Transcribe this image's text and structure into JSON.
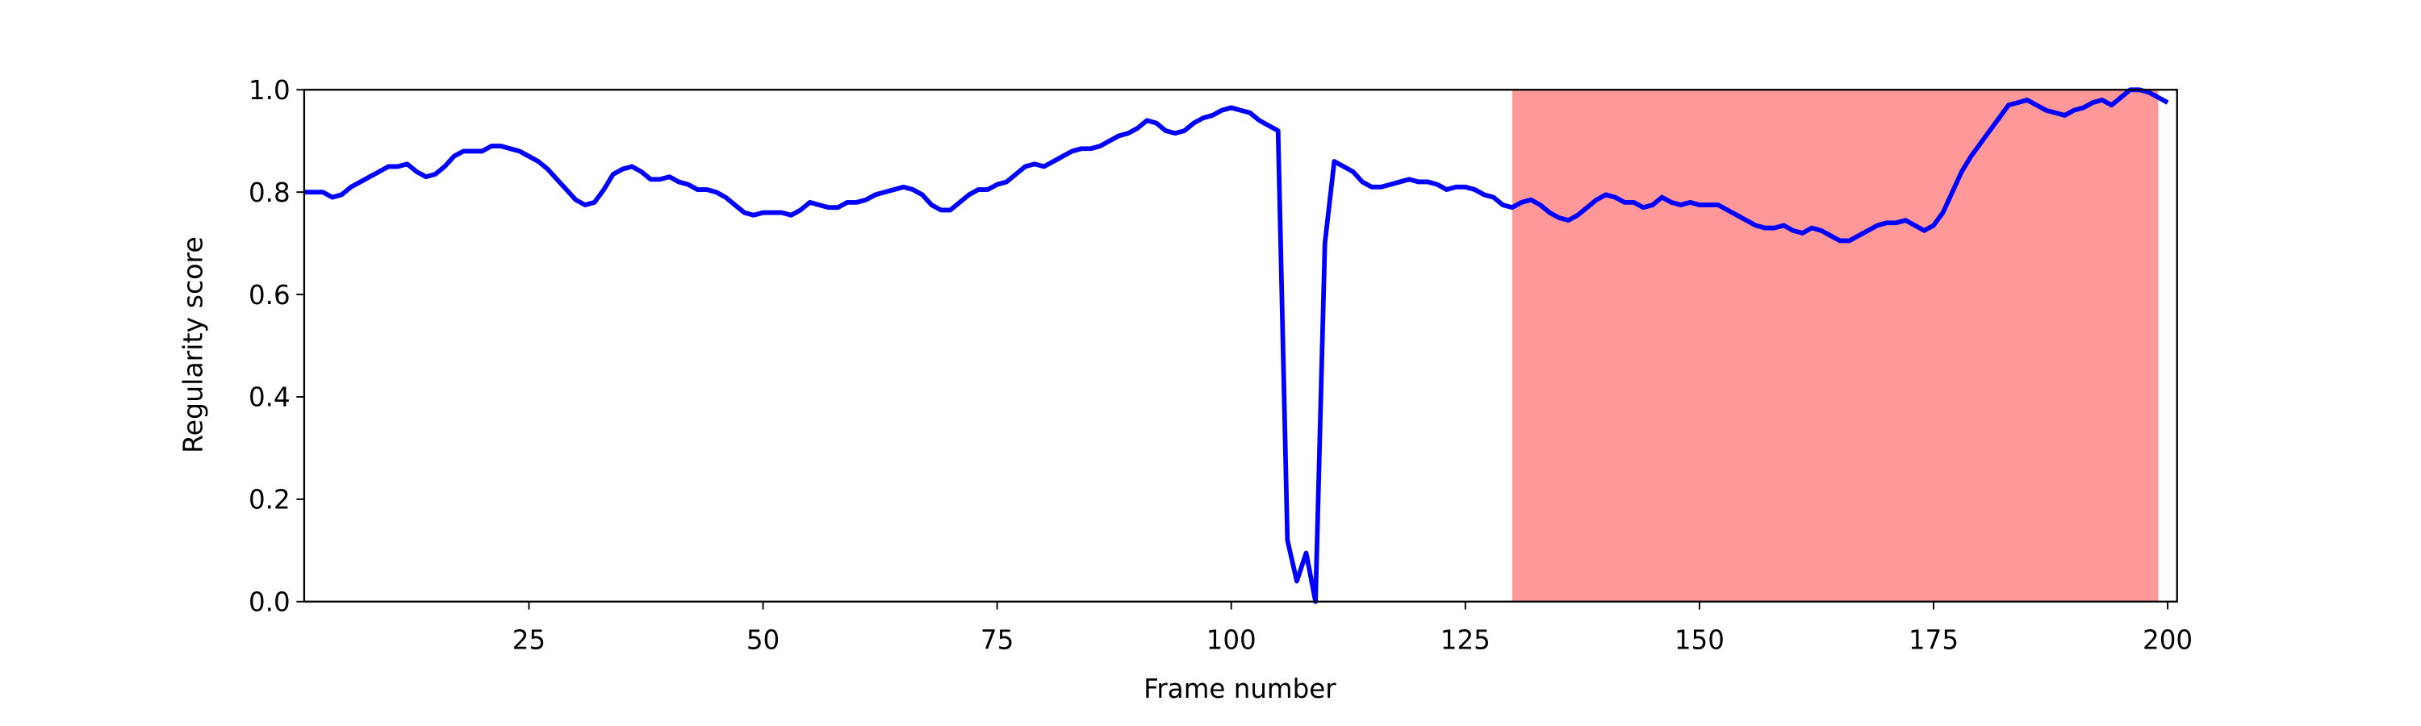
{
  "chart_data": {
    "type": "line",
    "xlabel": "Frame number",
    "ylabel": "Regularity score",
    "xlim": [
      1,
      201
    ],
    "ylim": [
      0,
      1
    ],
    "xticks": [
      25,
      50,
      75,
      100,
      125,
      150,
      175,
      200
    ],
    "yticks": [
      {
        "value": 0,
        "label": "0.0"
      },
      {
        "value": 0.2,
        "label": "0.2"
      },
      {
        "value": 0.4,
        "label": "0.4"
      },
      {
        "value": 0.6,
        "label": "0.6"
      },
      {
        "value": 0.8,
        "label": "0.8"
      },
      {
        "value": 1,
        "label": "1.0"
      }
    ],
    "span": {
      "start": 130,
      "end": 199,
      "color": "#ff9999"
    },
    "x": [
      1,
      2,
      3,
      4,
      5,
      6,
      7,
      8,
      9,
      10,
      11,
      12,
      13,
      14,
      15,
      16,
      17,
      18,
      19,
      20,
      21,
      22,
      23,
      24,
      25,
      26,
      27,
      28,
      29,
      30,
      31,
      32,
      33,
      34,
      35,
      36,
      37,
      38,
      39,
      40,
      41,
      42,
      43,
      44,
      45,
      46,
      47,
      48,
      49,
      50,
      51,
      52,
      53,
      54,
      55,
      56,
      57,
      58,
      59,
      60,
      61,
      62,
      63,
      64,
      65,
      66,
      67,
      68,
      69,
      70,
      71,
      72,
      73,
      74,
      75,
      76,
      77,
      78,
      79,
      80,
      81,
      82,
      83,
      84,
      85,
      86,
      87,
      88,
      89,
      90,
      91,
      92,
      93,
      94,
      95,
      96,
      97,
      98,
      99,
      100,
      101,
      102,
      103,
      104,
      105,
      106,
      107,
      108,
      109,
      110,
      111,
      112,
      113,
      114,
      115,
      116,
      117,
      118,
      119,
      120,
      121,
      122,
      123,
      124,
      125,
      126,
      127,
      128,
      129,
      130,
      131,
      132,
      133,
      134,
      135,
      136,
      137,
      138,
      139,
      140,
      141,
      142,
      143,
      144,
      145,
      146,
      147,
      148,
      149,
      150,
      151,
      152,
      153,
      154,
      155,
      156,
      157,
      158,
      159,
      160,
      161,
      162,
      163,
      164,
      165,
      166,
      167,
      168,
      169,
      170,
      171,
      172,
      173,
      174,
      175,
      176,
      177,
      178,
      179,
      180,
      181,
      182,
      183,
      184,
      185,
      186,
      187,
      188,
      189,
      190,
      191,
      192,
      193,
      194,
      195,
      196,
      197,
      198,
      199,
      200
    ],
    "series": [
      {
        "color": "#0000ff",
        "values": [
          0.8,
          0.8,
          0.8,
          0.79,
          0.795,
          0.81,
          0.82,
          0.83,
          0.84,
          0.85,
          0.85,
          0.855,
          0.84,
          0.83,
          0.835,
          0.85,
          0.87,
          0.88,
          0.88,
          0.88,
          0.89,
          0.89,
          0.885,
          0.88,
          0.87,
          0.86,
          0.845,
          0.825,
          0.805,
          0.785,
          0.775,
          0.78,
          0.805,
          0.835,
          0.845,
          0.85,
          0.84,
          0.825,
          0.825,
          0.83,
          0.82,
          0.815,
          0.805,
          0.805,
          0.8,
          0.79,
          0.775,
          0.76,
          0.755,
          0.76,
          0.76,
          0.76,
          0.755,
          0.765,
          0.78,
          0.775,
          0.77,
          0.77,
          0.78,
          0.78,
          0.785,
          0.795,
          0.8,
          0.805,
          0.81,
          0.805,
          0.795,
          0.775,
          0.765,
          0.765,
          0.78,
          0.795,
          0.805,
          0.805,
          0.815,
          0.82,
          0.835,
          0.85,
          0.855,
          0.85,
          0.86,
          0.87,
          0.88,
          0.885,
          0.885,
          0.89,
          0.9,
          0.91,
          0.915,
          0.925,
          0.94,
          0.935,
          0.92,
          0.915,
          0.92,
          0.935,
          0.945,
          0.95,
          0.96,
          0.965,
          0.96,
          0.955,
          0.94,
          0.93,
          0.92,
          0.12,
          0.04,
          0.095,
          0.0,
          0.7,
          0.86,
          0.85,
          0.84,
          0.82,
          0.81,
          0.81,
          0.815,
          0.82,
          0.825,
          0.82,
          0.82,
          0.815,
          0.805,
          0.81,
          0.81,
          0.805,
          0.795,
          0.79,
          0.775,
          0.77,
          0.78,
          0.785,
          0.775,
          0.76,
          0.75,
          0.745,
          0.755,
          0.77,
          0.785,
          0.795,
          0.79,
          0.78,
          0.78,
          0.77,
          0.775,
          0.79,
          0.78,
          0.775,
          0.78,
          0.775,
          0.775,
          0.775,
          0.765,
          0.755,
          0.745,
          0.735,
          0.73,
          0.73,
          0.735,
          0.725,
          0.72,
          0.73,
          0.725,
          0.715,
          0.705,
          0.705,
          0.715,
          0.725,
          0.735,
          0.74,
          0.74,
          0.745,
          0.735,
          0.725,
          0.735,
          0.76,
          0.8,
          0.84,
          0.87,
          0.895,
          0.92,
          0.945,
          0.97,
          0.975,
          0.98,
          0.97,
          0.96,
          0.955,
          0.95,
          0.96,
          0.965,
          0.975,
          0.98,
          0.97,
          0.985,
          1.0,
          1.0,
          0.995,
          0.985,
          0.975
        ]
      }
    ]
  }
}
